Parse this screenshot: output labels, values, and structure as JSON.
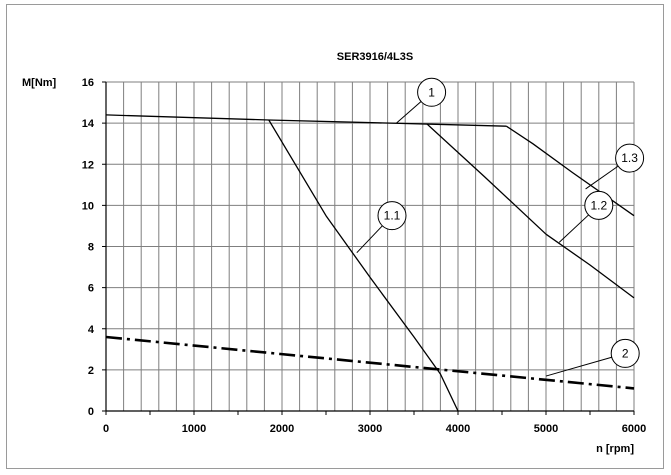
{
  "chart_data": {
    "type": "line",
    "title": "SER3916/4L3S",
    "xlabel": "n [rpm]",
    "ylabel": "M[Nm]",
    "xlim": [
      0,
      6000
    ],
    "ylim": [
      0,
      16
    ],
    "x_ticks": [
      0,
      1000,
      2000,
      3000,
      4000,
      5000,
      6000
    ],
    "y_ticks": [
      0,
      2,
      4,
      6,
      8,
      10,
      12,
      14,
      16
    ],
    "grid": {
      "vertical_step": 200,
      "horizontal_step": 2
    },
    "series": [
      {
        "name": "1",
        "style": "solid",
        "color": "#000000",
        "points": [
          [
            0,
            14.4
          ],
          [
            1850,
            14.15
          ],
          [
            3700,
            13.95
          ],
          [
            4550,
            13.85
          ]
        ]
      },
      {
        "name": "1.1",
        "style": "solid",
        "color": "#000000",
        "points": [
          [
            1850,
            14.15
          ],
          [
            2500,
            9.5
          ],
          [
            3000,
            6.5
          ],
          [
            3500,
            3.6
          ],
          [
            3800,
            1.8
          ],
          [
            4000,
            0
          ]
        ]
      },
      {
        "name": "1.2",
        "style": "solid",
        "color": "#000000",
        "points": [
          [
            3650,
            13.95
          ],
          [
            4300,
            11.4
          ],
          [
            5000,
            8.6
          ],
          [
            5500,
            7.1
          ],
          [
            6000,
            5.5
          ]
        ]
      },
      {
        "name": "1.3",
        "style": "solid",
        "color": "#000000",
        "points": [
          [
            4550,
            13.85
          ],
          [
            4850,
            13.0
          ],
          [
            5300,
            11.6
          ],
          [
            6000,
            9.5
          ]
        ]
      },
      {
        "name": "2",
        "style": "dash-dot",
        "color": "#000000",
        "points": [
          [
            0,
            3.6
          ],
          [
            6000,
            1.1
          ]
        ]
      }
    ],
    "callouts": [
      {
        "label": "1",
        "circle": [
          3700,
          15.5
        ],
        "target": [
          3300,
          14.0
        ]
      },
      {
        "label": "1.1",
        "circle": [
          3250,
          9.5
        ],
        "target": [
          2850,
          7.7
        ]
      },
      {
        "label": "1.2",
        "circle": [
          5600,
          10.0
        ],
        "target": [
          5150,
          8.2
        ]
      },
      {
        "label": "1.3",
        "circle": [
          5950,
          12.3
        ],
        "target": [
          5450,
          10.8
        ]
      },
      {
        "label": "2",
        "circle": [
          5900,
          2.8
        ],
        "target": [
          5000,
          1.7
        ]
      }
    ]
  }
}
